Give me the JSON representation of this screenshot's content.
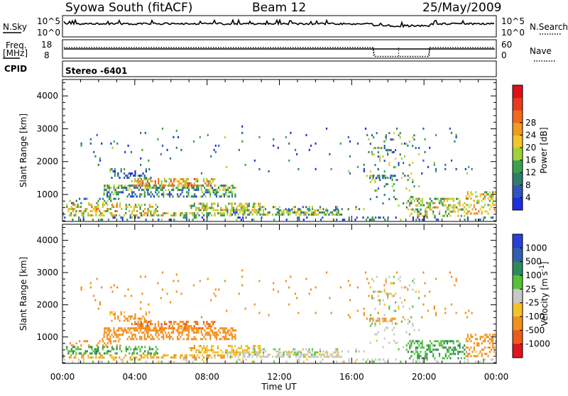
{
  "header": {
    "station": "Syowa South (fitACF)",
    "beam": "Beam 12",
    "date": "25/May/2009"
  },
  "status_panels": {
    "nsky_label": "N.Sky",
    "nsearch_label": "N.Search",
    "nsky_ticks": [
      "10^5",
      "10^0"
    ],
    "nsky_right_ticks": [
      "10^5",
      "10^0"
    ],
    "freq_label": "Freq.",
    "freq_unit": "[MHz]",
    "freq_ticks": [
      "18",
      "8"
    ],
    "nave_label": "Nave",
    "nave_ticks": [
      "60",
      "0"
    ],
    "cpid_label": "CPID",
    "cpid_value": "Stereo -6401"
  },
  "chart_data": [
    {
      "type": "heatmap",
      "name": "power-panel",
      "ylabel": "Slant Range [km]",
      "xlabel": "Time UT",
      "x_ticks": [
        "00:00",
        "04:00",
        "08:00",
        "12:00",
        "16:00",
        "20:00",
        "00:00"
      ],
      "x_range_hours": [
        0,
        24
      ],
      "y_ticks": [
        1000,
        2000,
        3000,
        4000
      ],
      "y_range_km": [
        180,
        4500
      ],
      "colorbar": {
        "label": "Power [dB]",
        "ticks": [
          "4",
          "8",
          "12",
          "16",
          "20",
          "24",
          "28"
        ],
        "range": [
          0,
          30
        ],
        "colors": [
          "#1d2ee0",
          "#2f55b8",
          "#2e7d6b",
          "#3aa04a",
          "#9fd23a",
          "#f2c62a",
          "#f29a1e",
          "#ef6b1a",
          "#e83b1c",
          "#e00f1a"
        ]
      },
      "regions": [
        {
          "t0": 0.0,
          "t1": 9.3,
          "r0": 330,
          "r1": 460,
          "val": 14,
          "dens": 0.45
        },
        {
          "t0": 0.2,
          "t1": 5.5,
          "r0": 480,
          "r1": 720,
          "val": 16,
          "dens": 0.4
        },
        {
          "t0": 0.3,
          "t1": 3.2,
          "r0": 720,
          "r1": 900,
          "val": 10,
          "dens": 0.25
        },
        {
          "t0": 2.0,
          "t1": 9.6,
          "r0": 900,
          "r1": 1100,
          "val": 8,
          "dens": 0.35
        },
        {
          "t0": 2.2,
          "t1": 9.6,
          "r0": 1100,
          "r1": 1300,
          "val": 10,
          "dens": 0.55
        },
        {
          "t0": 3.8,
          "t1": 8.5,
          "r0": 1250,
          "r1": 1500,
          "val": 18,
          "dens": 0.55
        },
        {
          "t0": 2.6,
          "t1": 5.0,
          "r0": 1450,
          "r1": 1800,
          "val": 6,
          "dens": 0.3
        },
        {
          "t0": 7.0,
          "t1": 11.0,
          "r0": 500,
          "r1": 750,
          "val": 14,
          "dens": 0.55
        },
        {
          "t0": 9.0,
          "t1": 15.5,
          "r0": 330,
          "r1": 550,
          "val": 12,
          "dens": 0.55
        },
        {
          "t0": 10.5,
          "t1": 16.8,
          "r0": 550,
          "r1": 650,
          "val": 10,
          "dens": 0.35
        },
        {
          "t0": 16.8,
          "t1": 18.4,
          "r0": 1450,
          "r1": 1600,
          "val": 8,
          "dens": 0.55
        },
        {
          "t0": 17.0,
          "t1": 19.8,
          "r0": 600,
          "r1": 2900,
          "val": 10,
          "dens": 0.1
        },
        {
          "t0": 19.0,
          "t1": 22.3,
          "r0": 330,
          "r1": 900,
          "val": 14,
          "dens": 0.4
        },
        {
          "t0": 22.3,
          "t1": 24.0,
          "r0": 400,
          "r1": 1100,
          "val": 16,
          "dens": 0.35
        },
        {
          "t0": 0.0,
          "t1": 24.0,
          "r0": 180,
          "r1": 330,
          "val": 6,
          "dens": 0.2
        },
        {
          "t0": 1.0,
          "t1": 23.0,
          "r0": 1600,
          "r1": 3100,
          "val": 6,
          "dens": 0.02
        }
      ]
    },
    {
      "type": "heatmap",
      "name": "velocity-panel",
      "ylabel": "Slant Range [km]",
      "xlabel": "Time UT",
      "x_ticks": [
        "00:00",
        "04:00",
        "08:00",
        "12:00",
        "16:00",
        "20:00",
        "00:00"
      ],
      "x_range_hours": [
        0,
        24
      ],
      "y_ticks": [
        1000,
        2000,
        3000,
        4000
      ],
      "y_range_km": [
        180,
        4500
      ],
      "colorbar": {
        "label": "Velocity [m s^-1]",
        "ticks": [
          "1000",
          "500",
          "100",
          "25",
          "-25",
          "-100",
          "-500",
          "-1000"
        ],
        "colors": [
          "#2a3fd8",
          "#2e5fb0",
          "#2e8a5a",
          "#55c23a",
          "#c8c8c8",
          "#f2c22a",
          "#f2901e",
          "#ee5a1a",
          "#e0141a"
        ]
      },
      "regions": [
        {
          "t0": 0.0,
          "t1": 9.3,
          "r0": 330,
          "r1": 460,
          "val": -100,
          "dens": 0.45
        },
        {
          "t0": 0.2,
          "t1": 5.5,
          "r0": 480,
          "r1": 720,
          "val": 100,
          "dens": 0.4
        },
        {
          "t0": 0.3,
          "t1": 3.2,
          "r0": 720,
          "r1": 900,
          "val": -300,
          "dens": 0.25
        },
        {
          "t0": 2.0,
          "t1": 9.6,
          "r0": 900,
          "r1": 1100,
          "val": -300,
          "dens": 0.4
        },
        {
          "t0": 2.2,
          "t1": 9.6,
          "r0": 1100,
          "r1": 1300,
          "val": -300,
          "dens": 0.55
        },
        {
          "t0": 3.8,
          "t1": 8.5,
          "r0": 1250,
          "r1": 1500,
          "val": -400,
          "dens": 0.55
        },
        {
          "t0": 2.6,
          "t1": 5.0,
          "r0": 1450,
          "r1": 1800,
          "val": -150,
          "dens": 0.3
        },
        {
          "t0": 7.0,
          "t1": 11.0,
          "r0": 500,
          "r1": 750,
          "val": -80,
          "dens": 0.5
        },
        {
          "t0": 9.0,
          "t1": 15.5,
          "r0": 330,
          "r1": 550,
          "val": 0,
          "dens": 0.6
        },
        {
          "t0": 10.5,
          "t1": 16.8,
          "r0": 550,
          "r1": 650,
          "val": 0,
          "dens": 0.35
        },
        {
          "t0": 16.8,
          "t1": 18.4,
          "r0": 1450,
          "r1": 1600,
          "val": -300,
          "dens": 0.55
        },
        {
          "t0": 17.0,
          "t1": 19.8,
          "r0": 600,
          "r1": 2900,
          "val": 0,
          "dens": 0.1
        },
        {
          "t0": 19.0,
          "t1": 22.3,
          "r0": 330,
          "r1": 900,
          "val": 100,
          "dens": 0.4
        },
        {
          "t0": 22.3,
          "t1": 24.0,
          "r0": 400,
          "r1": 1100,
          "val": -200,
          "dens": 0.35
        },
        {
          "t0": 0.0,
          "t1": 24.0,
          "r0": 180,
          "r1": 330,
          "val": 0,
          "dens": 0.2
        },
        {
          "t0": 1.0,
          "t1": 23.0,
          "r0": 1600,
          "r1": 3100,
          "val": -300,
          "dens": 0.02
        }
      ]
    }
  ]
}
